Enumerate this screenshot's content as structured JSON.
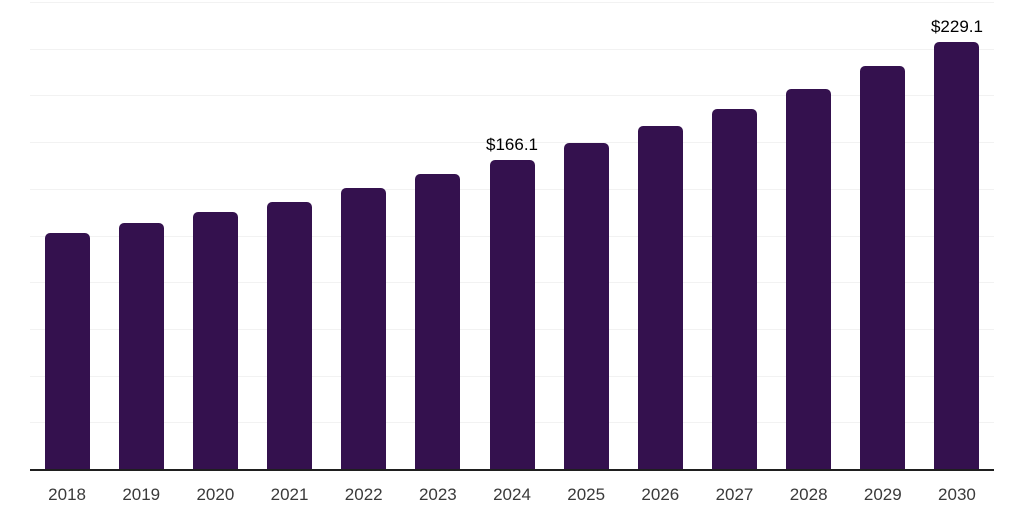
{
  "chart_data": {
    "type": "bar",
    "title": "",
    "xlabel": "",
    "ylabel": "",
    "categories": [
      "2018",
      "2019",
      "2020",
      "2021",
      "2022",
      "2023",
      "2024",
      "2025",
      "2026",
      "2027",
      "2028",
      "2029",
      "2030"
    ],
    "values": [
      126.7,
      132.1,
      137.9,
      143.5,
      151.0,
      158.2,
      166.1,
      174.9,
      184.1,
      193.5,
      204.1,
      216.2,
      229.1
    ],
    "data_labels": [
      {
        "category": "2024",
        "text": "$166.1"
      },
      {
        "category": "2030",
        "text": "$229.1"
      }
    ],
    "ylim": [
      0,
      250
    ],
    "grid_step": 25,
    "grid": "on",
    "legend": "none",
    "y_axis_tick_labels_visible": false,
    "currency_prefix": "$"
  },
  "colors": {
    "bar": "#34114E",
    "gridline": "#f2f2f2",
    "axis_line": "#1f1f1f",
    "x_tick_label": "#3a3a3a",
    "data_label": "#000000",
    "background": "#ffffff"
  }
}
